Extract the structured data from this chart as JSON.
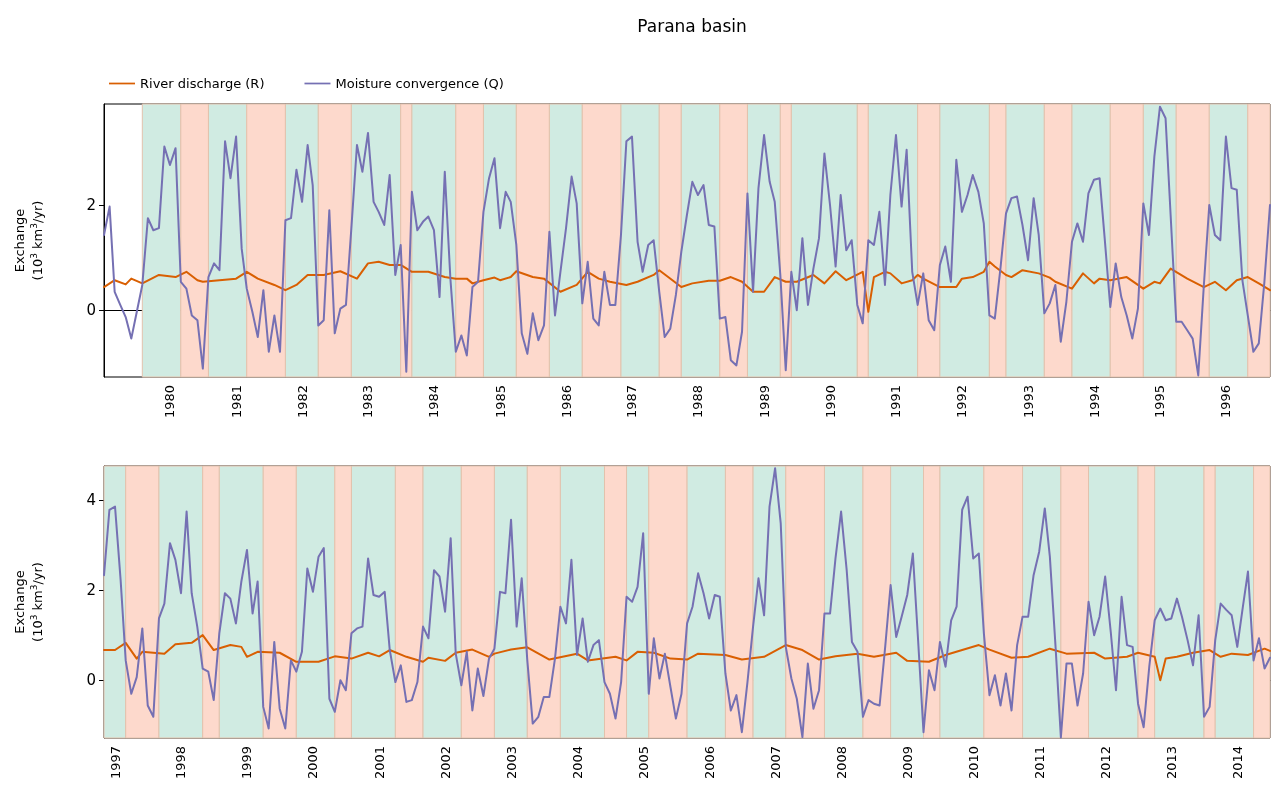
{
  "chart_data": [
    {
      "type": "line",
      "title": "Parana basin",
      "ylabel": "Exchange\n(10$^{3}$ km$^{3}$/yr)",
      "legend": "top left",
      "xlim": [
        "1979-01",
        "1996-09"
      ],
      "ylim": [
        -1.27,
        3.92
      ],
      "yticks": [
        0,
        2
      ],
      "xticks": [
        "1980",
        "1981",
        "1982",
        "1983",
        "1984",
        "1985",
        "1986",
        "1987",
        "1988",
        "1989",
        "1990",
        "1991",
        "1992",
        "1993",
        "1994",
        "1995",
        "1996"
      ],
      "series": [
        {
          "name": "River discharge (R)",
          "color": "#d95f02",
          "x": [
            "1979-01",
            "1979-03",
            "1979-05",
            "1979-06",
            "1979-08",
            "1979-11",
            "1980-02",
            "1980-04",
            "1980-06",
            "1980-07",
            "1980-10",
            "1981-01",
            "1981-03",
            "1981-05",
            "1981-08",
            "1981-10",
            "1981-12",
            "1982-02",
            "1982-05",
            "1982-08",
            "1982-11",
            "1983-01",
            "1983-03",
            "1983-05",
            "1983-07",
            "1983-09",
            "1983-12",
            "1984-03",
            "1984-05",
            "1984-07",
            "1984-08",
            "1984-10",
            "1984-12",
            "1985-01",
            "1985-03",
            "1985-04",
            "1985-07",
            "1985-09",
            "1985-12",
            "1986-03",
            "1986-05",
            "1986-07",
            "1986-09",
            "1986-12",
            "1987-02",
            "1987-05",
            "1987-06",
            "1987-10",
            "1987-12",
            "1988-03",
            "1988-05",
            "1988-07",
            "1988-09",
            "1988-11",
            "1989-01",
            "1989-03",
            "1989-05",
            "1989-07",
            "1989-10",
            "1989-12",
            "1990-02",
            "1990-04",
            "1990-07",
            "1990-08",
            "1990-09",
            "1990-11",
            "1990-12",
            "1991-02",
            "1991-04",
            "1991-05",
            "1991-06",
            "1991-09",
            "1991-12",
            "1992-01",
            "1992-03",
            "1992-05",
            "1992-06",
            "1992-07",
            "1992-09",
            "1992-10",
            "1992-12",
            "1993-03",
            "1993-05",
            "1993-06",
            "1993-09",
            "1993-11",
            "1994-01",
            "1994-02",
            "1994-04",
            "1994-07",
            "1994-10",
            "1994-12",
            "1995-01",
            "1995-03",
            "1995-06",
            "1995-09",
            "1995-11",
            "1996-01",
            "1996-03",
            "1996-05",
            "1996-07",
            "1996-09"
          ],
          "values": [
            0.44,
            0.57,
            0.49,
            0.6,
            0.51,
            0.67,
            0.63,
            0.73,
            0.57,
            0.54,
            0.57,
            0.6,
            0.73,
            0.6,
            0.48,
            0.38,
            0.48,
            0.67,
            0.67,
            0.74,
            0.6,
            0.89,
            0.92,
            0.86,
            0.86,
            0.73,
            0.73,
            0.63,
            0.6,
            0.6,
            0.51,
            0.57,
            0.62,
            0.57,
            0.63,
            0.74,
            0.63,
            0.6,
            0.35,
            0.48,
            0.73,
            0.6,
            0.54,
            0.48,
            0.54,
            0.67,
            0.76,
            0.44,
            0.51,
            0.56,
            0.56,
            0.63,
            0.54,
            0.35,
            0.35,
            0.63,
            0.54,
            0.54,
            0.67,
            0.51,
            0.74,
            0.57,
            0.73,
            -0.03,
            0.63,
            0.73,
            0.7,
            0.51,
            0.57,
            0.67,
            0.6,
            0.44,
            0.44,
            0.6,
            0.63,
            0.73,
            0.92,
            0.83,
            0.67,
            0.63,
            0.76,
            0.7,
            0.62,
            0.54,
            0.41,
            0.7,
            0.51,
            0.6,
            0.57,
            0.63,
            0.41,
            0.54,
            0.51,
            0.79,
            0.6,
            0.44,
            0.54,
            0.38,
            0.57,
            0.63,
            0.51,
            0.38
          ]
        },
        {
          "name": "Moisture convergence (Q)",
          "color": "#7570b3",
          "x": [
            "1979-01",
            "1979-02",
            "1979-03",
            "1979-04",
            "1979-05",
            "1979-06",
            "1979-07",
            "1979-08",
            "1979-09",
            "1979-10",
            "1979-11",
            "1979-12",
            "1980-01",
            "1980-02",
            "1980-03",
            "1980-04",
            "1980-05",
            "1980-06",
            "1980-07",
            "1980-08",
            "1980-09",
            "1980-10",
            "1980-11",
            "1980-12",
            "1981-01",
            "1981-02",
            "1981-03",
            "1981-04",
            "1981-05",
            "1981-06",
            "1981-07",
            "1981-08",
            "1981-09",
            "1981-10",
            "1981-11",
            "1981-12",
            "1982-01",
            "1982-02",
            "1982-03",
            "1982-04",
            "1982-05",
            "1982-06",
            "1982-07",
            "1982-08",
            "1982-09",
            "1982-10",
            "1982-11",
            "1982-12",
            "1983-01",
            "1983-02",
            "1983-03",
            "1983-04",
            "1983-05",
            "1983-06",
            "1983-07",
            "1983-08",
            "1983-09",
            "1983-10",
            "1983-11",
            "1983-12",
            "1984-01",
            "1984-02",
            "1984-03",
            "1984-04",
            "1984-05",
            "1984-06",
            "1984-07",
            "1984-08",
            "1984-09",
            "1984-10",
            "1984-11",
            "1984-12",
            "1985-01",
            "1985-02",
            "1985-03",
            "1985-04",
            "1985-05",
            "1985-06",
            "1985-07",
            "1985-08",
            "1985-09",
            "1985-10",
            "1985-11",
            "1985-12",
            "1986-01",
            "1986-02",
            "1986-03",
            "1986-04",
            "1986-05",
            "1986-06",
            "1986-07",
            "1986-08",
            "1986-09",
            "1986-10",
            "1986-11",
            "1986-12",
            "1987-01",
            "1987-02",
            "1987-03",
            "1987-04",
            "1987-05",
            "1987-06",
            "1987-07",
            "1987-08",
            "1987-09",
            "1987-10",
            "1987-11",
            "1987-12",
            "1988-01",
            "1988-02",
            "1988-03",
            "1988-04",
            "1988-05",
            "1988-06",
            "1988-07",
            "1988-08",
            "1988-09",
            "1988-10",
            "1988-11",
            "1988-12",
            "1989-01",
            "1989-02",
            "1989-03",
            "1989-04",
            "1989-05",
            "1989-06",
            "1989-07",
            "1989-08",
            "1989-09",
            "1989-10",
            "1989-11",
            "1989-12",
            "1990-01",
            "1990-02",
            "1990-03",
            "1990-04",
            "1990-05",
            "1990-06",
            "1990-07",
            "1990-08",
            "1990-09",
            "1990-10",
            "1990-11",
            "1990-12",
            "1991-01",
            "1991-02",
            "1991-03",
            "1991-04",
            "1991-05",
            "1991-06",
            "1991-07",
            "1991-08",
            "1991-09",
            "1991-10",
            "1991-11",
            "1991-12",
            "1992-01",
            "1992-02",
            "1992-03",
            "1992-04",
            "1992-05",
            "1992-06",
            "1992-07",
            "1992-08",
            "1992-09",
            "1992-10",
            "1992-11",
            "1992-12",
            "1993-01",
            "1993-02",
            "1993-03",
            "1993-04",
            "1993-05",
            "1993-06",
            "1993-07",
            "1993-08",
            "1993-09",
            "1993-10",
            "1993-11",
            "1993-12",
            "1994-01",
            "1994-02",
            "1994-03",
            "1994-04",
            "1994-05",
            "1994-06",
            "1994-07",
            "1994-08",
            "1994-09",
            "1994-10",
            "1994-11",
            "1994-12",
            "1995-01",
            "1995-02",
            "1995-03",
            "1995-04",
            "1995-05",
            "1995-06",
            "1995-07",
            "1995-08",
            "1995-09",
            "1995-10",
            "1995-11",
            "1995-12",
            "1996-01",
            "1996-02",
            "1996-03",
            "1996-04",
            "1996-05",
            "1996-06",
            "1996-07",
            "1996-08",
            "1996-09"
          ],
          "values": [
            1.43,
            1.97,
            0.35,
            0.1,
            -0.13,
            -0.54,
            -0.04,
            0.48,
            1.75,
            1.52,
            1.56,
            3.11,
            2.76,
            3.08,
            0.54,
            0.41,
            -0.1,
            -0.19,
            -1.11,
            0.63,
            0.89,
            0.76,
            3.21,
            2.51,
            3.3,
            1.17,
            0.41,
            -0.03,
            -0.51,
            0.38,
            -0.79,
            -0.1,
            -0.79,
            1.71,
            1.75,
            2.67,
            2.06,
            3.14,
            2.38,
            -0.29,
            -0.19,
            1.9,
            -0.44,
            0.03,
            0.1,
            1.56,
            3.14,
            2.63,
            3.37,
            2.06,
            1.87,
            1.62,
            2.57,
            0.67,
            1.24,
            -1.17,
            2.25,
            1.52,
            1.68,
            1.78,
            1.52,
            0.25,
            2.63,
            0.6,
            -0.79,
            -0.48,
            -0.86,
            0.44,
            0.54,
            1.87,
            2.51,
            2.89,
            1.56,
            2.25,
            2.06,
            1.24,
            -0.44,
            -0.83,
            -0.06,
            -0.57,
            -0.29,
            1.49,
            -0.1,
            0.73,
            1.56,
            2.54,
            2.03,
            0.13,
            0.92,
            -0.16,
            -0.29,
            0.73,
            0.1,
            0.1,
            1.43,
            3.21,
            3.3,
            1.3,
            0.73,
            1.24,
            1.33,
            0.35,
            -0.51,
            -0.35,
            0.29,
            1.11,
            1.81,
            2.44,
            2.19,
            2.38,
            1.62,
            1.59,
            -0.16,
            -0.13,
            -0.95,
            -1.05,
            -0.41,
            2.22,
            0.35,
            2.32,
            3.33,
            2.44,
            2.06,
            0.67,
            -1.14,
            0.73,
            0.0,
            1.37,
            0.1,
            0.79,
            1.37,
            2.98,
            2.0,
            0.83,
            2.19,
            1.14,
            1.33,
            0.1,
            -0.25,
            1.33,
            1.24,
            1.87,
            0.48,
            2.19,
            3.33,
            1.97,
            3.05,
            0.73,
            0.1,
            0.7,
            -0.19,
            -0.38,
            0.86,
            1.21,
            0.54,
            2.86,
            1.87,
            2.19,
            2.57,
            2.25,
            1.65,
            -0.1,
            -0.16,
            0.79,
            1.84,
            2.13,
            2.16,
            1.62,
            0.95,
            2.13,
            1.43,
            -0.06,
            0.13,
            0.48,
            -0.6,
            0.16,
            1.3,
            1.65,
            1.3,
            2.22,
            2.48,
            2.51,
            1.37,
            0.06,
            0.89,
            0.25,
            -0.1,
            -0.54,
            0.03,
            2.03,
            1.43,
            2.92,
            3.87,
            3.65,
            1.81,
            -0.22,
            -0.22,
            -0.38,
            -0.54,
            -1.24,
            0.48,
            2.0,
            1.43,
            1.33,
            3.3,
            2.32,
            2.29,
            0.57,
            -0.1,
            -0.79,
            -0.63,
            0.54,
            2.0
          ]
        }
      ],
      "bands": [
        {
          "axis": "x",
          "from": "1979-08",
          "to": "1980-03",
          "color": "#d0ebe2"
        },
        {
          "axis": "x",
          "from": "1980-03",
          "to": "1980-08",
          "color": "#fdd9cc"
        },
        {
          "axis": "x",
          "from": "1980-08",
          "to": "1981-03",
          "color": "#d0ebe2"
        },
        {
          "axis": "x",
          "from": "1981-03",
          "to": "1981-10",
          "color": "#fdd9cc"
        },
        {
          "axis": "x",
          "from": "1981-10",
          "to": "1982-04",
          "color": "#d0ebe2"
        },
        {
          "axis": "x",
          "from": "1982-04",
          "to": "1982-10",
          "color": "#fdd9cc"
        },
        {
          "axis": "x",
          "from": "1982-10",
          "to": "1983-07",
          "color": "#d0ebe2"
        },
        {
          "axis": "x",
          "from": "1983-07",
          "to": "1983-09",
          "color": "#fdd9cc"
        },
        {
          "axis": "x",
          "from": "1983-09",
          "to": "1984-05",
          "color": "#d0ebe2"
        },
        {
          "axis": "x",
          "from": "1984-05",
          "to": "1984-10",
          "color": "#fdd9cc"
        },
        {
          "axis": "x",
          "from": "1984-10",
          "to": "1985-04",
          "color": "#d0ebe2"
        },
        {
          "axis": "x",
          "from": "1985-04",
          "to": "1985-10",
          "color": "#fdd9cc"
        },
        {
          "axis": "x",
          "from": "1985-10",
          "to": "1986-04",
          "color": "#d0ebe2"
        },
        {
          "axis": "x",
          "from": "1986-04",
          "to": "1986-11",
          "color": "#fdd9cc"
        },
        {
          "axis": "x",
          "from": "1986-11",
          "to": "1987-06",
          "color": "#d0ebe2"
        },
        {
          "axis": "x",
          "from": "1987-06",
          "to": "1987-10",
          "color": "#fdd9cc"
        },
        {
          "axis": "x",
          "from": "1987-10",
          "to": "1988-05",
          "color": "#d0ebe2"
        },
        {
          "axis": "x",
          "from": "1988-05",
          "to": "1988-10",
          "color": "#fdd9cc"
        },
        {
          "axis": "x",
          "from": "1988-10",
          "to": "1989-04",
          "color": "#d0ebe2"
        },
        {
          "axis": "x",
          "from": "1989-04",
          "to": "1989-06",
          "color": "#fdd9cc"
        },
        {
          "axis": "x",
          "from": "1989-06",
          "to": "1990-06",
          "color": "#d0ebe2"
        },
        {
          "axis": "x",
          "from": "1990-06",
          "to": "1990-08",
          "color": "#fdd9cc"
        },
        {
          "axis": "x",
          "from": "1990-08",
          "to": "1991-05",
          "color": "#d0ebe2"
        },
        {
          "axis": "x",
          "from": "1991-05",
          "to": "1991-09",
          "color": "#fdd9cc"
        },
        {
          "axis": "x",
          "from": "1991-09",
          "to": "1992-06",
          "color": "#d0ebe2"
        },
        {
          "axis": "x",
          "from": "1992-06",
          "to": "1992-09",
          "color": "#fdd9cc"
        },
        {
          "axis": "x",
          "from": "1992-09",
          "to": "1993-04",
          "color": "#d0ebe2"
        },
        {
          "axis": "x",
          "from": "1993-04",
          "to": "1993-09",
          "color": "#fdd9cc"
        },
        {
          "axis": "x",
          "from": "1993-09",
          "to": "1994-04",
          "color": "#d0ebe2"
        },
        {
          "axis": "x",
          "from": "1994-04",
          "to": "1994-10",
          "color": "#fdd9cc"
        },
        {
          "axis": "x",
          "from": "1994-10",
          "to": "1995-04",
          "color": "#d0ebe2"
        },
        {
          "axis": "x",
          "from": "1995-04",
          "to": "1995-10",
          "color": "#fdd9cc"
        },
        {
          "axis": "x",
          "from": "1995-10",
          "to": "1996-05",
          "color": "#d0ebe2"
        },
        {
          "axis": "x",
          "from": "1996-05",
          "to": "1996-09",
          "color": "#fdd9cc"
        }
      ]
    },
    {
      "type": "line",
      "ylabel": "Exchange\n(10$^{3}$ km$^{3}$/yr)",
      "xlim": [
        "1996-11",
        "2014-07"
      ],
      "ylim": [
        -1.28,
        4.75
      ],
      "yticks": [
        0,
        2,
        4
      ],
      "xticks": [
        "1997",
        "1998",
        "1999",
        "2000",
        "2001",
        "2002",
        "2003",
        "2004",
        "2005",
        "2006",
        "2007",
        "2008",
        "2009",
        "2010",
        "2011",
        "2012",
        "2013",
        "2014"
      ],
      "series": [
        {
          "color": "#d95f02",
          "x": [
            "1996-11",
            "1997-01",
            "1997-03",
            "1997-05",
            "1997-06",
            "1997-10",
            "1997-12",
            "1998-03",
            "1998-05",
            "1998-07",
            "1998-10",
            "1998-12",
            "1999-01",
            "1999-03",
            "1999-07",
            "1999-10",
            "2000-02",
            "2000-05",
            "2000-08",
            "2000-11",
            "2001-01",
            "2001-03",
            "2001-06",
            "2001-09",
            "2001-10",
            "2002-01",
            "2002-03",
            "2002-06",
            "2002-09",
            "2002-10",
            "2003-01",
            "2003-04",
            "2003-08",
            "2004-01",
            "2004-03",
            "2004-08",
            "2004-10",
            "2004-12",
            "2005-03",
            "2005-06",
            "2005-09",
            "2005-11",
            "2006-04",
            "2006-07",
            "2006-11",
            "2007-03",
            "2007-06",
            "2007-09",
            "2007-12",
            "2008-04",
            "2008-07",
            "2008-11",
            "2009-01",
            "2009-05",
            "2009-08",
            "2010-02",
            "2010-04",
            "2010-08",
            "2010-11",
            "2011-03",
            "2011-06",
            "2011-11",
            "2012-01",
            "2012-05",
            "2012-07",
            "2012-10",
            "2012-11",
            "2012-12",
            "2013-02",
            "2013-05",
            "2013-08",
            "2013-10",
            "2013-12",
            "2014-03",
            "2014-06",
            "2014-07"
          ],
          "values": [
            0.67,
            0.67,
            0.83,
            0.48,
            0.63,
            0.59,
            0.8,
            0.83,
            1.0,
            0.67,
            0.78,
            0.74,
            0.52,
            0.63,
            0.61,
            0.41,
            0.41,
            0.53,
            0.48,
            0.61,
            0.53,
            0.67,
            0.52,
            0.41,
            0.5,
            0.43,
            0.61,
            0.68,
            0.52,
            0.59,
            0.68,
            0.73,
            0.46,
            0.59,
            0.44,
            0.52,
            0.44,
            0.63,
            0.61,
            0.48,
            0.46,
            0.59,
            0.56,
            0.46,
            0.52,
            0.78,
            0.67,
            0.46,
            0.53,
            0.59,
            0.52,
            0.61,
            0.43,
            0.41,
            0.56,
            0.78,
            0.68,
            0.5,
            0.52,
            0.7,
            0.59,
            0.61,
            0.48,
            0.52,
            0.61,
            0.52,
            0.0,
            0.48,
            0.52,
            0.61,
            0.67,
            0.52,
            0.59,
            0.56,
            0.7,
            0.65
          ]
        },
        {
          "color": "#7570b3",
          "x": [
            "1996-11",
            "1996-12",
            "1997-01",
            "1997-02",
            "1997-03",
            "1997-04",
            "1997-05",
            "1997-06",
            "1997-07",
            "1997-08",
            "1997-09",
            "1997-10",
            "1997-11",
            "1997-12",
            "1998-01",
            "1998-02",
            "1998-03",
            "1998-04",
            "1998-05",
            "1998-06",
            "1998-07",
            "1998-08",
            "1998-09",
            "1998-10",
            "1998-11",
            "1998-12",
            "1999-01",
            "1999-02",
            "1999-03",
            "1999-04",
            "1999-05",
            "1999-06",
            "1999-07",
            "1999-08",
            "1999-09",
            "1999-10",
            "1999-11",
            "1999-12",
            "2000-01",
            "2000-02",
            "2000-03",
            "2000-04",
            "2000-05",
            "2000-06",
            "2000-07",
            "2000-08",
            "2000-09",
            "2000-10",
            "2000-11",
            "2000-12",
            "2001-01",
            "2001-02",
            "2001-03",
            "2001-04",
            "2001-05",
            "2001-06",
            "2001-07",
            "2001-08",
            "2001-09",
            "2001-10",
            "2001-11",
            "2001-12",
            "2002-01",
            "2002-02",
            "2002-03",
            "2002-04",
            "2002-05",
            "2002-06",
            "2002-07",
            "2002-08",
            "2002-09",
            "2002-10",
            "2002-11",
            "2002-12",
            "2003-01",
            "2003-02",
            "2003-03",
            "2003-04",
            "2003-05",
            "2003-06",
            "2003-07",
            "2003-08",
            "2003-09",
            "2003-10",
            "2003-11",
            "2003-12",
            "2004-01",
            "2004-02",
            "2004-03",
            "2004-04",
            "2004-05",
            "2004-06",
            "2004-07",
            "2004-08",
            "2004-09",
            "2004-10",
            "2004-11",
            "2004-12",
            "2005-01",
            "2005-02",
            "2005-03",
            "2005-04",
            "2005-05",
            "2005-06",
            "2005-07",
            "2005-08",
            "2005-09",
            "2005-10",
            "2005-11",
            "2005-12",
            "2006-01",
            "2006-02",
            "2006-03",
            "2006-04",
            "2006-05",
            "2006-06",
            "2006-07",
            "2006-08",
            "2006-09",
            "2006-10",
            "2006-11",
            "2006-12",
            "2007-01",
            "2007-02",
            "2007-03",
            "2007-04",
            "2007-05",
            "2007-06",
            "2007-07",
            "2007-08",
            "2007-09",
            "2007-10",
            "2007-11",
            "2007-12",
            "2008-01",
            "2008-02",
            "2008-03",
            "2008-04",
            "2008-05",
            "2008-06",
            "2008-07",
            "2008-08",
            "2008-09",
            "2008-10",
            "2008-11",
            "2008-12",
            "2009-01",
            "2009-02",
            "2009-03",
            "2009-04",
            "2009-05",
            "2009-06",
            "2009-07",
            "2009-08",
            "2009-09",
            "2009-10",
            "2009-11",
            "2009-12",
            "2010-01",
            "2010-02",
            "2010-03",
            "2010-04",
            "2010-05",
            "2010-06",
            "2010-07",
            "2010-08",
            "2010-09",
            "2010-10",
            "2010-11",
            "2010-12",
            "2011-01",
            "2011-02",
            "2011-03",
            "2011-04",
            "2011-05",
            "2011-06",
            "2011-07",
            "2011-08",
            "2011-09",
            "2011-10",
            "2011-11",
            "2011-12",
            "2012-01",
            "2012-02",
            "2012-03",
            "2012-04",
            "2012-05",
            "2012-06",
            "2012-07",
            "2012-08",
            "2012-09",
            "2012-10",
            "2012-11",
            "2012-12",
            "2013-01",
            "2013-02",
            "2013-03",
            "2013-04",
            "2013-05",
            "2013-06",
            "2013-07",
            "2013-08",
            "2013-09",
            "2013-10",
            "2013-11",
            "2013-12",
            "2014-01",
            "2014-02",
            "2014-03",
            "2014-04",
            "2014-05",
            "2014-06",
            "2014-07"
          ],
          "values": [
            2.33,
            3.78,
            3.85,
            2.22,
            0.44,
            -0.3,
            0.07,
            1.15,
            -0.56,
            -0.81,
            1.37,
            1.7,
            3.04,
            2.67,
            1.93,
            3.74,
            1.93,
            1.19,
            0.26,
            0.19,
            -0.44,
            1.04,
            1.93,
            1.81,
            1.26,
            2.19,
            2.89,
            1.48,
            2.19,
            -0.59,
            -1.07,
            0.85,
            -0.63,
            -1.07,
            0.44,
            0.19,
            0.63,
            2.48,
            1.96,
            2.74,
            2.93,
            -0.41,
            -0.7,
            0.0,
            -0.22,
            1.04,
            1.15,
            1.19,
            2.7,
            1.89,
            1.85,
            1.96,
            0.67,
            -0.04,
            0.33,
            -0.48,
            -0.44,
            -0.04,
            1.19,
            0.93,
            2.44,
            2.3,
            1.52,
            3.15,
            0.59,
            -0.11,
            0.63,
            -0.67,
            0.26,
            -0.35,
            0.48,
            0.7,
            1.96,
            1.93,
            3.56,
            1.19,
            2.26,
            0.44,
            -0.96,
            -0.81,
            -0.37,
            -0.37,
            0.48,
            1.63,
            1.26,
            2.67,
            0.56,
            1.37,
            0.41,
            0.78,
            0.89,
            -0.04,
            -0.3,
            -0.85,
            -0.04,
            1.85,
            1.74,
            2.07,
            3.26,
            -0.3,
            0.93,
            0.04,
            0.59,
            -0.15,
            -0.85,
            -0.3,
            1.26,
            1.63,
            2.37,
            1.93,
            1.37,
            1.89,
            1.85,
            0.15,
            -0.67,
            -0.33,
            -1.15,
            -0.04,
            1.19,
            2.26,
            1.44,
            3.85,
            4.7,
            3.48,
            0.74,
            0.04,
            -0.41,
            -1.26,
            0.37,
            -0.63,
            -0.22,
            1.48,
            1.48,
            2.7,
            3.74,
            2.44,
            0.85,
            0.63,
            -0.81,
            -0.44,
            -0.52,
            -0.56,
            0.74,
            2.11,
            0.96,
            1.41,
            1.89,
            2.81,
            0.96,
            -1.15,
            0.22,
            -0.22,
            0.85,
            0.3,
            1.33,
            1.63,
            3.78,
            4.07,
            2.7,
            2.81,
            1.04,
            -0.33,
            0.11,
            -0.56,
            0.15,
            -0.67,
            0.78,
            1.41,
            1.41,
            2.33,
            2.85,
            3.81,
            2.74,
            0.78,
            -1.27,
            0.37,
            0.37,
            -0.56,
            0.15,
            1.74,
            1.0,
            1.41,
            2.3,
            1.07,
            -0.22,
            1.85,
            0.78,
            0.74,
            -0.52,
            -1.04,
            0.3,
            1.33,
            1.59,
            1.33,
            1.37,
            1.81,
            1.41,
            0.89,
            0.33,
            1.44,
            -0.81,
            -0.59,
            0.89,
            1.7,
            1.56,
            1.44,
            0.74,
            1.63,
            2.41,
            0.44,
            0.93,
            0.26,
            0.5
          ]
        }
      ],
      "bands": [
        {
          "axis": "x",
          "from": "1996-11",
          "to": "1997-03",
          "color": "#d0ebe2"
        },
        {
          "axis": "x",
          "from": "1997-03",
          "to": "1997-09",
          "color": "#fdd9cc"
        },
        {
          "axis": "x",
          "from": "1997-09",
          "to": "1998-05",
          "color": "#d0ebe2"
        },
        {
          "axis": "x",
          "from": "1998-05",
          "to": "1998-08",
          "color": "#fdd9cc"
        },
        {
          "axis": "x",
          "from": "1998-08",
          "to": "1999-04",
          "color": "#d0ebe2"
        },
        {
          "axis": "x",
          "from": "1999-04",
          "to": "1999-10",
          "color": "#fdd9cc"
        },
        {
          "axis": "x",
          "from": "1999-10",
          "to": "2000-05",
          "color": "#d0ebe2"
        },
        {
          "axis": "x",
          "from": "2000-05",
          "to": "2000-08",
          "color": "#fdd9cc"
        },
        {
          "axis": "x",
          "from": "2000-08",
          "to": "2001-04",
          "color": "#d0ebe2"
        },
        {
          "axis": "x",
          "from": "2001-04",
          "to": "2001-09",
          "color": "#fdd9cc"
        },
        {
          "axis": "x",
          "from": "2001-09",
          "to": "2002-04",
          "color": "#d0ebe2"
        },
        {
          "axis": "x",
          "from": "2002-04",
          "to": "2002-10",
          "color": "#fdd9cc"
        },
        {
          "axis": "x",
          "from": "2002-10",
          "to": "2003-04",
          "color": "#d0ebe2"
        },
        {
          "axis": "x",
          "from": "2003-04",
          "to": "2003-10",
          "color": "#fdd9cc"
        },
        {
          "axis": "x",
          "from": "2003-10",
          "to": "2004-06",
          "color": "#d0ebe2"
        },
        {
          "axis": "x",
          "from": "2004-06",
          "to": "2004-10",
          "color": "#fdd9cc"
        },
        {
          "axis": "x",
          "from": "2004-10",
          "to": "2005-02",
          "color": "#d0ebe2"
        },
        {
          "axis": "x",
          "from": "2005-02",
          "to": "2005-09",
          "color": "#fdd9cc"
        },
        {
          "axis": "x",
          "from": "2005-09",
          "to": "2006-04",
          "color": "#d0ebe2"
        },
        {
          "axis": "x",
          "from": "2006-04",
          "to": "2006-09",
          "color": "#fdd9cc"
        },
        {
          "axis": "x",
          "from": "2006-09",
          "to": "2007-03",
          "color": "#d0ebe2"
        },
        {
          "axis": "x",
          "from": "2007-03",
          "to": "2007-10",
          "color": "#fdd9cc"
        },
        {
          "axis": "x",
          "from": "2007-10",
          "to": "2008-05",
          "color": "#d0ebe2"
        },
        {
          "axis": "x",
          "from": "2008-05",
          "to": "2008-10",
          "color": "#fdd9cc"
        },
        {
          "axis": "x",
          "from": "2008-10",
          "to": "2009-04",
          "color": "#d0ebe2"
        },
        {
          "axis": "x",
          "from": "2009-04",
          "to": "2009-07",
          "color": "#fdd9cc"
        },
        {
          "axis": "x",
          "from": "2009-07",
          "to": "2010-03",
          "color": "#d0ebe2"
        },
        {
          "axis": "x",
          "from": "2010-03",
          "to": "2010-10",
          "color": "#fdd9cc"
        },
        {
          "axis": "x",
          "from": "2010-10",
          "to": "2011-05",
          "color": "#d0ebe2"
        },
        {
          "axis": "x",
          "from": "2011-05",
          "to": "2011-10",
          "color": "#fdd9cc"
        },
        {
          "axis": "x",
          "from": "2011-10",
          "to": "2012-07",
          "color": "#d0ebe2"
        },
        {
          "axis": "x",
          "from": "2012-07",
          "to": "2012-10",
          "color": "#fdd9cc"
        },
        {
          "axis": "x",
          "from": "2012-10",
          "to": "2013-07",
          "color": "#d0ebe2"
        },
        {
          "axis": "x",
          "from": "2013-07",
          "to": "2013-09",
          "color": "#fdd9cc"
        },
        {
          "axis": "x",
          "from": "2013-09",
          "to": "2014-04",
          "color": "#d0ebe2"
        },
        {
          "axis": "x",
          "from": "2014-04",
          "to": "2014-07",
          "color": "#fdd9cc"
        }
      ]
    }
  ]
}
